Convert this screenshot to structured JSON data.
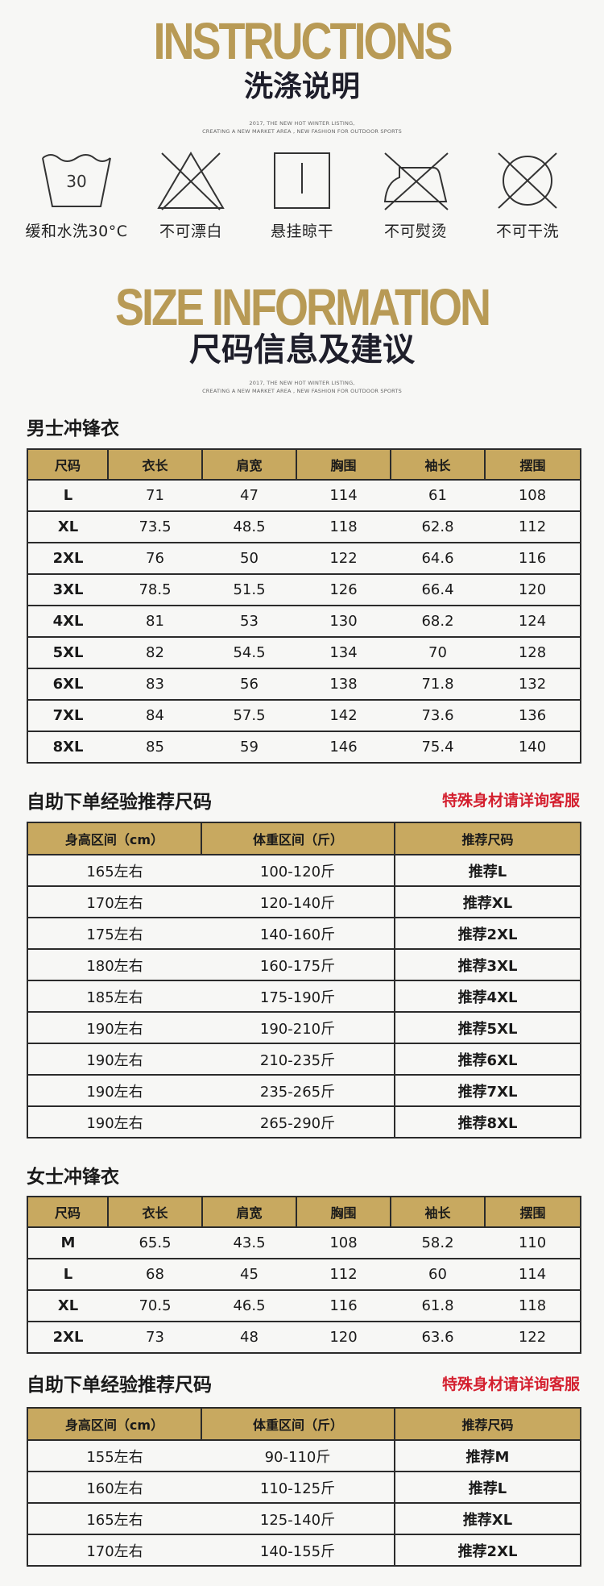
{
  "instructions": {
    "title_en": "INSTRUCTIONS",
    "title_cn": "洗涤说明",
    "tagline_1": "2017, THE NEW HOT WINTER LISTING,",
    "tagline_2": "CREATING A NEW MARKET AREA , NEW FASHION FOR OUTDOOR SPORTS"
  },
  "care": [
    {
      "icon": "wash-30-icon",
      "label": "缓和水洗30°C",
      "temp": "30"
    },
    {
      "icon": "no-bleach-icon",
      "label": "不可漂白"
    },
    {
      "icon": "hang-dry-icon",
      "label": "悬挂晾干"
    },
    {
      "icon": "no-iron-icon",
      "label": "不可熨烫"
    },
    {
      "icon": "no-dry-clean-icon",
      "label": "不可干洗"
    }
  ],
  "size_info": {
    "title_en": "SIZE INFORMATION",
    "title_cn": "尺码信息及建议",
    "tagline_1": "2017, THE NEW HOT WINTER LISTING,",
    "tagline_2": "CREATING A NEW MARKET AREA , NEW FASHION FOR OUTDOOR SPORTS"
  },
  "men": {
    "label": "男士冲锋衣",
    "headers": [
      "尺码",
      "衣长",
      "肩宽",
      "胸围",
      "袖长",
      "摆围"
    ],
    "rows": [
      [
        "L",
        "71",
        "47",
        "114",
        "61",
        "108"
      ],
      [
        "XL",
        "73.5",
        "48.5",
        "118",
        "62.8",
        "112"
      ],
      [
        "2XL",
        "76",
        "50",
        "122",
        "64.6",
        "116"
      ],
      [
        "3XL",
        "78.5",
        "51.5",
        "126",
        "66.4",
        "120"
      ],
      [
        "4XL",
        "81",
        "53",
        "130",
        "68.2",
        "124"
      ],
      [
        "5XL",
        "82",
        "54.5",
        "134",
        "70",
        "128"
      ],
      [
        "6XL",
        "83",
        "56",
        "138",
        "71.8",
        "132"
      ],
      [
        "7XL",
        "84",
        "57.5",
        "142",
        "73.6",
        "136"
      ],
      [
        "8XL",
        "85",
        "59",
        "146",
        "75.4",
        "140"
      ]
    ]
  },
  "men_rec": {
    "label": "自助下单经验推荐尺码",
    "note": "特殊身材请详询客服",
    "headers": [
      "身高区间（cm）",
      "体重区间（斤）",
      "推荐尺码"
    ],
    "rows": [
      [
        "165左右",
        "100-120斤",
        "推荐L"
      ],
      [
        "170左右",
        "120-140斤",
        "推荐XL"
      ],
      [
        "175左右",
        "140-160斤",
        "推荐2XL"
      ],
      [
        "180左右",
        "160-175斤",
        "推荐3XL"
      ],
      [
        "185左右",
        "175-190斤",
        "推荐4XL"
      ],
      [
        "190左右",
        "190-210斤",
        "推荐5XL"
      ],
      [
        "190左右",
        "210-235斤",
        "推荐6XL"
      ],
      [
        "190左右",
        "235-265斤",
        "推荐7XL"
      ],
      [
        "190左右",
        "265-290斤",
        "推荐8XL"
      ]
    ]
  },
  "women": {
    "label": "女士冲锋衣",
    "headers": [
      "尺码",
      "衣长",
      "肩宽",
      "胸围",
      "袖长",
      "摆围"
    ],
    "rows": [
      [
        "M",
        "65.5",
        "43.5",
        "108",
        "58.2",
        "110"
      ],
      [
        "L",
        "68",
        "45",
        "112",
        "60",
        "114"
      ],
      [
        "XL",
        "70.5",
        "46.5",
        "116",
        "61.8",
        "118"
      ],
      [
        "2XL",
        "73",
        "48",
        "120",
        "63.6",
        "122"
      ]
    ]
  },
  "women_rec": {
    "label": "自助下单经验推荐尺码",
    "note": "特殊身材请详询客服",
    "headers": [
      "身高区间（cm）",
      "体重区间（斤）",
      "推荐尺码"
    ],
    "rows": [
      [
        "155左右",
        "90-110斤",
        "推荐M"
      ],
      [
        "160左右",
        "110-125斤",
        "推荐L"
      ],
      [
        "165左右",
        "125-140斤",
        "推荐XL"
      ],
      [
        "170左右",
        "140-155斤",
        "推荐2XL"
      ]
    ]
  }
}
